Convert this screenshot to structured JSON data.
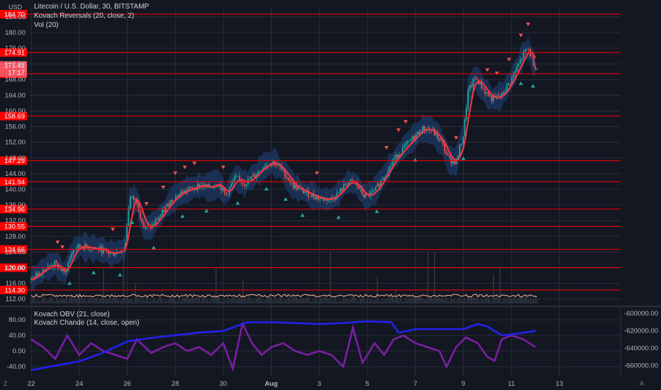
{
  "header": {
    "title": "Litecoin / U.S. Dollar, 30, BITSTAMP",
    "indicator_1": "Kovach Reversals (20, close, 2)",
    "indicator_2": "Vol (20)",
    "lower_indicator_1": "Kovach OBV (21, close)",
    "lower_indicator_2": "Kovach Chande (14, close, open)",
    "currency": "USD"
  },
  "footer": {
    "left_icon_text": "Z",
    "right_icon_text": "A"
  },
  "colors": {
    "background": "#131722",
    "grid": "#2a2e39",
    "up": "#26a69a",
    "down": "#ef5350",
    "level": "#ff0000",
    "ma": "#f23645",
    "band": "#1c3a66",
    "obv": "#2222ee",
    "chande": "#7b1fa2",
    "volume_line": "#f8b89b"
  },
  "chart_data": [
    {
      "type": "line",
      "title": "Litecoin / U.S. Dollar, 30, BITSTAMP",
      "x_ticks": [
        "22",
        "24",
        "26",
        "28",
        "30",
        "Aug",
        "3",
        "5",
        "7",
        "9",
        "11",
        "13"
      ],
      "y_ticks": [
        112,
        116,
        120,
        124,
        128,
        132,
        136,
        140,
        144,
        148,
        152,
        156,
        160,
        164,
        168,
        172,
        176,
        180,
        184
      ],
      "ylim": [
        110.5,
        186.5
      ],
      "levels": [
        184.7,
        174.91,
        169.48,
        158.69,
        147.29,
        141.94,
        134.96,
        130.55,
        124.66,
        120.0,
        114.3
      ],
      "last_price": 171.41,
      "countdown": "17:17",
      "series": [
        {
          "type": "line",
          "values": [
            [
              22.0,
              117
            ],
            [
              22.5,
              119.5
            ],
            [
              23.0,
              121
            ],
            [
              23.4,
              118.5
            ],
            [
              23.7,
              124
            ],
            [
              24.0,
              125.5
            ],
            [
              24.5,
              125
            ],
            [
              25.0,
              124.5
            ],
            [
              25.3,
              123.5
            ],
            [
              25.6,
              124
            ],
            [
              25.9,
              125
            ],
            [
              26.1,
              138
            ],
            [
              26.4,
              137
            ],
            [
              26.7,
              130
            ],
            [
              27.0,
              130.5
            ],
            [
              27.4,
              133.5
            ],
            [
              27.8,
              137
            ],
            [
              28.2,
              139
            ],
            [
              28.6,
              140
            ],
            [
              29.0,
              141
            ],
            [
              29.4,
              140.5
            ],
            [
              29.8,
              141.5
            ],
            [
              30.1,
              138.5
            ],
            [
              30.5,
              143
            ],
            [
              30.9,
              141.5
            ],
            [
              31.3,
              143.5
            ],
            [
              31.7,
              146
            ],
            [
              32.1,
              147
            ],
            [
              32.5,
              144.5
            ],
            [
              32.9,
              141
            ],
            [
              33.3,
              139.5
            ],
            [
              33.7,
              138.5
            ],
            [
              34.1,
              137.5
            ],
            [
              34.5,
              137.5
            ],
            [
              34.8,
              139
            ],
            [
              35.2,
              142
            ],
            [
              35.5,
              141.5
            ],
            [
              35.9,
              138
            ],
            [
              36.3,
              139.5
            ],
            [
              36.7,
              143.5
            ],
            [
              37.1,
              147.5
            ],
            [
              37.5,
              150.5
            ],
            [
              37.9,
              153
            ],
            [
              38.3,
              155.5
            ],
            [
              38.7,
              155
            ],
            [
              39.1,
              152
            ],
            [
              39.4,
              147.5
            ],
            [
              39.7,
              147
            ],
            [
              40.0,
              154
            ],
            [
              40.2,
              165
            ],
            [
              40.5,
              168.5
            ],
            [
              40.9,
              165
            ],
            [
              41.2,
              163
            ],
            [
              41.6,
              164
            ],
            [
              41.9,
              167
            ],
            [
              42.2,
              170.5
            ],
            [
              42.5,
              174.5
            ],
            [
              42.7,
              176
            ],
            [
              42.9,
              172.5
            ],
            [
              43.1,
              170.5
            ]
          ]
        }
      ]
    },
    {
      "type": "line",
      "y_ticks": [
        -40,
        0,
        40,
        80
      ],
      "right_ticks": [
        -600000,
        -620000,
        -640000,
        -660000
      ],
      "series": [
        {
          "name": "Kovach OBV (21, close)",
          "values": [
            [
              22.0,
              -665000
            ],
            [
              23.0,
              -660000
            ],
            [
              24.0,
              -655000
            ],
            [
              25.0,
              -645000
            ],
            [
              26.0,
              -632000
            ],
            [
              27.0,
              -628000
            ],
            [
              28.0,
              -625000
            ],
            [
              29.0,
              -622000
            ],
            [
              30.0,
              -620000
            ],
            [
              31.0,
              -610000
            ],
            [
              32.0,
              -610000
            ],
            [
              33.0,
              -611000
            ],
            [
              34.0,
              -612000
            ],
            [
              35.0,
              -611000
            ],
            [
              36.0,
              -609000
            ],
            [
              37.0,
              -610000
            ],
            [
              37.3,
              -622000
            ],
            [
              38.0,
              -618000
            ],
            [
              39.0,
              -618000
            ],
            [
              40.0,
              -618000
            ],
            [
              40.6,
              -612000
            ],
            [
              41.0,
              -615000
            ],
            [
              41.6,
              -625000
            ],
            [
              42.0,
              -624000
            ],
            [
              43.0,
              -620000
            ]
          ]
        },
        {
          "name": "Kovach Chande (14, close, open)",
          "values": [
            [
              22.0,
              30
            ],
            [
              22.5,
              10
            ],
            [
              23.0,
              -20
            ],
            [
              23.5,
              40
            ],
            [
              24.0,
              -10
            ],
            [
              24.5,
              20
            ],
            [
              25.0,
              0
            ],
            [
              25.5,
              -10
            ],
            [
              26.0,
              -20
            ],
            [
              26.4,
              30
            ],
            [
              27.0,
              -5
            ],
            [
              27.5,
              10
            ],
            [
              28.0,
              20
            ],
            [
              28.5,
              0
            ],
            [
              29.0,
              10
            ],
            [
              29.5,
              -10
            ],
            [
              30.0,
              20
            ],
            [
              30.4,
              -45
            ],
            [
              30.8,
              70
            ],
            [
              31.2,
              20
            ],
            [
              31.6,
              -10
            ],
            [
              32.0,
              10
            ],
            [
              32.5,
              20
            ],
            [
              33.0,
              0
            ],
            [
              33.5,
              -10
            ],
            [
              34.0,
              0
            ],
            [
              34.5,
              -10
            ],
            [
              35.0,
              -40
            ],
            [
              35.4,
              60
            ],
            [
              35.8,
              -30
            ],
            [
              36.3,
              20
            ],
            [
              36.7,
              -10
            ],
            [
              37.1,
              30
            ],
            [
              37.5,
              40
            ],
            [
              38.0,
              20
            ],
            [
              38.5,
              10
            ],
            [
              39.0,
              0
            ],
            [
              39.3,
              -40
            ],
            [
              39.7,
              10
            ],
            [
              40.1,
              35
            ],
            [
              40.6,
              20
            ],
            [
              41.0,
              -15
            ],
            [
              41.3,
              -25
            ],
            [
              41.6,
              30
            ],
            [
              42.0,
              40
            ],
            [
              42.5,
              30
            ],
            [
              43.0,
              10
            ]
          ]
        }
      ]
    }
  ]
}
